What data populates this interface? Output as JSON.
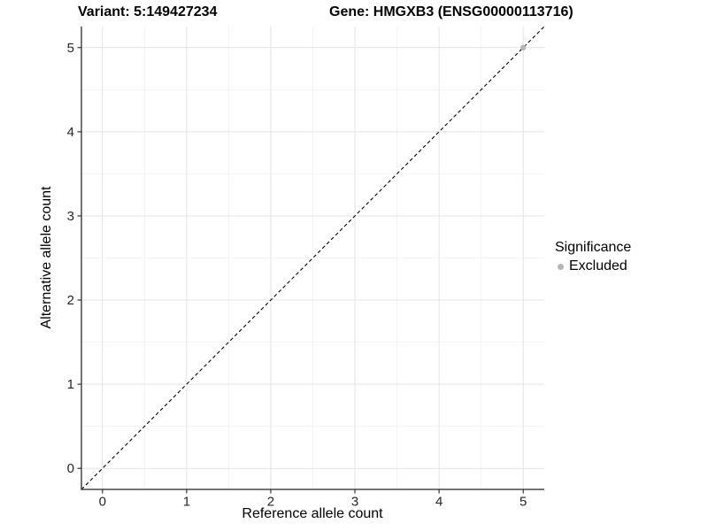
{
  "chart_data": {
    "type": "scatter",
    "title_left": "Variant: 5:149427234",
    "title_right": "Gene: HMGXB3 (ENSG00000113716)",
    "xlabel": "Reference allele count",
    "ylabel": "Alternative allele count",
    "xlim": [
      -0.25,
      5.25
    ],
    "ylim": [
      -0.25,
      5.25
    ],
    "xticks": [
      0,
      1,
      2,
      3,
      4,
      5
    ],
    "yticks": [
      0,
      1,
      2,
      3,
      4,
      5
    ],
    "minor_ticks": [
      0.5,
      1.5,
      2.5,
      3.5,
      4.5
    ],
    "grid": true,
    "identity_line": {
      "type": "dashed",
      "x1": -0.25,
      "y1": -0.25,
      "x2": 5.25,
      "y2": 5.25,
      "color": "#000000"
    },
    "series": [
      {
        "name": "Excluded",
        "color": "#b5b5b5",
        "points": [
          {
            "x": 5,
            "y": 5
          }
        ]
      }
    ],
    "legend": {
      "title": "Significance",
      "position": "right",
      "entries": [
        {
          "label": "Excluded",
          "color": "#b5b5b5"
        }
      ]
    },
    "style": {
      "grid_color_major": "#e4e4e4",
      "grid_color_minor": "#f3f3f3",
      "axis_line_color": "#474747",
      "tick_color": "#333333",
      "tick_label_color": "#262626",
      "point_radius": 3.2,
      "background": "#ffffff"
    }
  }
}
